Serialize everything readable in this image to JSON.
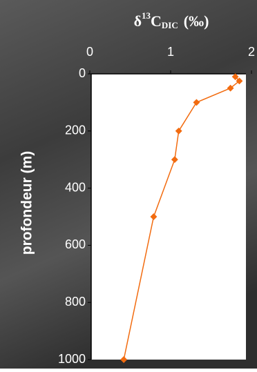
{
  "chart_data": {
    "type": "line",
    "title_parts": [
      "δ",
      "13",
      "C",
      "DIC",
      "(‰)"
    ],
    "ylabel": "profondeur (m)",
    "series": [
      {
        "color": "#f26b0f",
        "x": [
          1.8,
          1.85,
          1.74,
          1.32,
          1.1,
          1.05,
          0.79,
          0.42
        ],
        "values": [
          10,
          25,
          50,
          100,
          200,
          300,
          500,
          1000
        ]
      }
    ],
    "xlim": [
      0,
      2
    ],
    "xticks": [
      0,
      1,
      2
    ],
    "ylim": [
      0,
      1000
    ],
    "yticks": [
      0,
      200,
      400,
      600,
      800,
      1000
    ],
    "y_inverted": true,
    "x_axis_top": true
  }
}
